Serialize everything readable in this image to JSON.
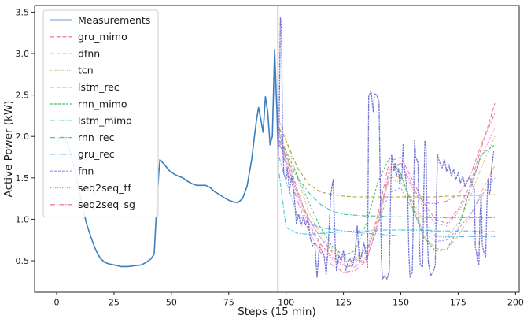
{
  "chart_data": {
    "type": "line",
    "title": "",
    "xlabel": "Steps (15 min)",
    "ylabel": "Active Power (kW)",
    "xlim": [
      -9.6,
      201.6
    ],
    "ylim": [
      0.12,
      3.58
    ],
    "xticks": [
      0,
      25,
      50,
      75,
      100,
      125,
      150,
      175,
      200
    ],
    "yticks": [
      0.5,
      1.0,
      1.5,
      2.0,
      2.5,
      3.0,
      3.5
    ],
    "grid": false,
    "legend_position": "upper left",
    "axis_color": "#262626",
    "forecast_split_line": {
      "x": 96.5,
      "color": "#1a1a1a"
    },
    "forecast_steps": [
      97,
      100,
      105,
      110,
      115,
      120,
      125,
      130,
      135,
      140,
      145,
      150,
      155,
      160,
      165,
      170,
      175,
      180,
      185,
      191
    ],
    "series": [
      {
        "name": "Measurements",
        "color": "#3a7ebf",
        "linestyle": "solid",
        "width": 1.6,
        "in_legend": true,
        "points": [
          [
            0,
            1.93
          ],
          [
            2,
            2.0
          ],
          [
            3,
            2.0
          ],
          [
            5,
            1.9
          ],
          [
            7,
            1.7
          ],
          [
            9,
            1.45
          ],
          [
            11,
            1.18
          ],
          [
            13,
            0.95
          ],
          [
            15,
            0.78
          ],
          [
            17,
            0.63
          ],
          [
            19,
            0.53
          ],
          [
            21,
            0.48
          ],
          [
            23,
            0.46
          ],
          [
            25,
            0.45
          ],
          [
            28,
            0.43
          ],
          [
            31,
            0.43
          ],
          [
            34,
            0.44
          ],
          [
            37,
            0.45
          ],
          [
            39,
            0.48
          ],
          [
            41,
            0.52
          ],
          [
            42.5,
            0.58
          ],
          [
            43.5,
            1.1
          ],
          [
            44.5,
            1.55
          ],
          [
            45,
            1.72
          ],
          [
            47,
            1.66
          ],
          [
            49,
            1.59
          ],
          [
            51,
            1.55
          ],
          [
            53,
            1.52
          ],
          [
            55,
            1.5
          ],
          [
            57,
            1.46
          ],
          [
            59,
            1.43
          ],
          [
            61,
            1.41
          ],
          [
            63,
            1.41
          ],
          [
            65,
            1.41
          ],
          [
            67,
            1.38
          ],
          [
            69,
            1.33
          ],
          [
            71,
            1.3
          ],
          [
            73,
            1.26
          ],
          [
            75,
            1.23
          ],
          [
            77,
            1.21
          ],
          [
            79,
            1.2
          ],
          [
            81,
            1.25
          ],
          [
            83,
            1.4
          ],
          [
            85,
            1.72
          ],
          [
            86,
            1.95
          ],
          [
            87,
            2.18
          ],
          [
            88,
            2.35
          ],
          [
            89,
            2.2
          ],
          [
            90,
            2.05
          ],
          [
            91,
            2.48
          ],
          [
            92,
            2.3
          ],
          [
            93,
            1.9
          ],
          [
            94,
            2.0
          ],
          [
            95,
            3.05
          ],
          [
            96,
            2.3
          ],
          [
            96.5,
            1.85
          ]
        ]
      },
      {
        "name": "gru_mimo",
        "color": "#f08396",
        "linestyle": "dashed",
        "width": 1.1,
        "in_legend": true,
        "values": [
          2.1,
          1.8,
          1.35,
          0.95,
          0.7,
          0.55,
          0.45,
          0.43,
          0.55,
          1.05,
          1.7,
          1.75,
          1.48,
          1.2,
          1.0,
          0.95,
          1.12,
          1.4,
          1.85,
          2.4
        ]
      },
      {
        "name": "dfnn",
        "color": "#f6b47c",
        "linestyle": "dashed",
        "width": 1.1,
        "in_legend": true,
        "values": [
          2.05,
          1.75,
          1.32,
          1.0,
          0.78,
          0.6,
          0.5,
          0.48,
          0.6,
          1.0,
          1.5,
          1.52,
          1.22,
          0.8,
          0.65,
          0.63,
          0.8,
          1.02,
          1.32,
          1.65
        ]
      },
      {
        "name": "tcn",
        "color": "#d4c28a",
        "linestyle": "dotted-dense",
        "width": 1.4,
        "in_legend": true,
        "values": [
          2.2,
          1.95,
          1.5,
          1.08,
          0.82,
          0.65,
          0.55,
          0.52,
          0.65,
          1.05,
          1.48,
          1.45,
          1.22,
          0.98,
          0.8,
          0.78,
          0.95,
          1.25,
          1.62,
          2.0
        ]
      },
      {
        "name": "lstm_rec",
        "color": "#a6a832",
        "linestyle": "dashed",
        "width": 1.1,
        "in_legend": true,
        "values": [
          2.1,
          1.95,
          1.62,
          1.42,
          1.33,
          1.3,
          1.28,
          1.27,
          1.27,
          1.27,
          1.27,
          1.27,
          1.27,
          1.27,
          1.27,
          1.28,
          1.28,
          1.29,
          1.29,
          1.3
        ]
      },
      {
        "name": "rnn_mimo",
        "color": "#4eb86d",
        "linestyle": "dashed-small",
        "width": 1.1,
        "in_legend": true,
        "values": [
          1.95,
          1.82,
          1.52,
          1.2,
          0.9,
          0.68,
          0.56,
          0.62,
          0.95,
          1.45,
          1.74,
          1.55,
          1.15,
          0.78,
          0.62,
          0.63,
          0.88,
          1.35,
          1.78,
          1.9
        ]
      },
      {
        "name": "lstm_mimo",
        "color": "#3dbfab",
        "linestyle": "dashdot",
        "width": 1.1,
        "in_legend": true,
        "values": [
          1.9,
          1.75,
          1.5,
          1.32,
          1.18,
          1.1,
          1.06,
          1.05,
          1.04,
          1.04,
          1.03,
          1.03,
          1.03,
          1.02,
          1.02,
          1.02,
          1.02,
          1.02,
          1.02,
          1.02
        ]
      },
      {
        "name": "rnn_rec",
        "color": "#43c3de",
        "linestyle": "dashdot",
        "width": 1.1,
        "in_legend": true,
        "values": [
          1.55,
          0.9,
          0.83,
          0.82,
          0.83,
          0.84,
          0.85,
          0.86,
          0.86,
          0.87,
          0.87,
          0.87,
          0.87,
          0.87,
          0.86,
          0.86,
          0.86,
          0.86,
          0.85,
          0.85
        ]
      },
      {
        "name": "gru_rec",
        "color": "#6cb3ea",
        "linestyle": "dashdotdot",
        "width": 1.1,
        "in_legend": true,
        "values": [
          1.75,
          1.45,
          1.05,
          0.95,
          0.9,
          0.88,
          0.86,
          0.84,
          0.83,
          0.82,
          0.81,
          0.8,
          0.8,
          0.8,
          0.8,
          0.79,
          0.79,
          0.79,
          0.79,
          0.79
        ]
      },
      {
        "name": "fnn",
        "color": "#a2a2ef",
        "linestyle": "dashed-small",
        "width": 1.1,
        "in_legend": true,
        "values": [
          2.05,
          1.7,
          1.3,
          1.0,
          0.78,
          0.62,
          0.52,
          0.5,
          0.62,
          0.95,
          1.32,
          1.38,
          1.12,
          0.85,
          0.73,
          0.75,
          0.88,
          1.05,
          1.28,
          1.5
        ]
      },
      {
        "name": "seq2seq_tf",
        "color": "#d98ae8",
        "linestyle": "dotted-dense",
        "width": 1.1,
        "in_legend": true,
        "values": [
          2.0,
          1.7,
          1.28,
          0.92,
          0.68,
          0.52,
          0.44,
          0.42,
          0.52,
          0.9,
          1.55,
          1.68,
          1.42,
          1.12,
          0.95,
          0.92,
          1.08,
          1.35,
          1.75,
          2.1
        ]
      },
      {
        "name": "seq2seq_sg",
        "color": "#f279b6",
        "linestyle": "dashdot",
        "width": 1.1,
        "in_legend": true,
        "values": [
          1.95,
          1.65,
          1.22,
          0.85,
          0.6,
          0.45,
          0.36,
          0.38,
          0.5,
          0.95,
          1.6,
          1.68,
          1.38,
          1.2,
          1.19,
          1.22,
          1.3,
          1.5,
          1.9,
          2.28
        ]
      },
      {
        "name": "unlabeled_purple_actuals",
        "color": "#7273d4",
        "linestyle": "dotted-tight",
        "width": 1.3,
        "in_legend": false,
        "points": [
          [
            96.5,
            1.6
          ],
          [
            97,
            2.2
          ],
          [
            97.5,
            3.43
          ],
          [
            98,
            3.3
          ],
          [
            98.5,
            2.0
          ],
          [
            99,
            1.55
          ],
          [
            100,
            1.48
          ],
          [
            100.5,
            1.62
          ],
          [
            101.5,
            1.35
          ],
          [
            102.5,
            1.52
          ],
          [
            103.5,
            1.3
          ],
          [
            104.5,
            0.95
          ],
          [
            105.5,
            1.06
          ],
          [
            106.5,
            0.92
          ],
          [
            107.5,
            1.02
          ],
          [
            108.5,
            0.93
          ],
          [
            109.5,
            1.0
          ],
          [
            110.5,
            0.78
          ],
          [
            111.5,
            0.68
          ],
          [
            112.5,
            0.72
          ],
          [
            113.5,
            0.3
          ],
          [
            114.5,
            0.68
          ],
          [
            115.5,
            0.62
          ],
          [
            116.5,
            0.57
          ],
          [
            117.5,
            0.33
          ],
          [
            118.5,
            0.75
          ],
          [
            119.5,
            1.3
          ],
          [
            120.5,
            1.48
          ],
          [
            121.5,
            0.6
          ],
          [
            122,
            0.38
          ],
          [
            123,
            0.56
          ],
          [
            124,
            0.5
          ],
          [
            125,
            0.62
          ],
          [
            126,
            0.38
          ],
          [
            127,
            0.48
          ],
          [
            128,
            0.52
          ],
          [
            129,
            0.44
          ],
          [
            130,
            0.58
          ],
          [
            131,
            0.92
          ],
          [
            132,
            0.48
          ],
          [
            133,
            0.58
          ],
          [
            134,
            0.72
          ],
          [
            135,
            0.55
          ],
          [
            135.5,
            0.42
          ],
          [
            136,
            2.48
          ],
          [
            137,
            2.55
          ],
          [
            137.5,
            2.42
          ],
          [
            138,
            2.3
          ],
          [
            138.5,
            2.52
          ],
          [
            139.5,
            2.5
          ],
          [
            140.5,
            2.42
          ],
          [
            141,
            1.5
          ],
          [
            141.5,
            0.55
          ],
          [
            142,
            0.28
          ],
          [
            143,
            0.32
          ],
          [
            144,
            0.28
          ],
          [
            145,
            0.38
          ],
          [
            145.5,
            1.2
          ],
          [
            146,
            1.78
          ],
          [
            147,
            1.58
          ],
          [
            147.5,
            1.68
          ],
          [
            148,
            1.52
          ],
          [
            149,
            1.62
          ],
          [
            149.5,
            1.42
          ],
          [
            150.5,
            1.55
          ],
          [
            151,
            1.9
          ],
          [
            151.5,
            1.62
          ],
          [
            152.5,
            1.42
          ],
          [
            153,
            1.28
          ],
          [
            153.5,
            0.6
          ],
          [
            154,
            0.3
          ],
          [
            155,
            0.36
          ],
          [
            155.5,
            1.1
          ],
          [
            156,
            1.95
          ],
          [
            156.5,
            1.75
          ],
          [
            157.5,
            1.68
          ],
          [
            158,
            0.8
          ],
          [
            158.5,
            0.45
          ],
          [
            159.5,
            0.42
          ],
          [
            160,
            1.3
          ],
          [
            160.5,
            1.95
          ],
          [
            161,
            1.85
          ],
          [
            161.5,
            0.9
          ],
          [
            162,
            0.48
          ],
          [
            163,
            0.32
          ],
          [
            164,
            0.36
          ],
          [
            165,
            0.44
          ],
          [
            165.5,
            1.2
          ],
          [
            166,
            1.78
          ],
          [
            167,
            1.68
          ],
          [
            168,
            1.62
          ],
          [
            169,
            1.72
          ],
          [
            170,
            1.58
          ],
          [
            171,
            1.66
          ],
          [
            172,
            1.52
          ],
          [
            173,
            1.6
          ],
          [
            174,
            1.48
          ],
          [
            175,
            1.56
          ],
          [
            176,
            1.44
          ],
          [
            177,
            1.52
          ],
          [
            178,
            1.4
          ],
          [
            179,
            1.46
          ],
          [
            180,
            1.52
          ],
          [
            181,
            1.42
          ],
          [
            182,
            1.38
          ],
          [
            182.5,
            0.65
          ],
          [
            183,
            0.6
          ],
          [
            183.5,
            0.48
          ],
          [
            184,
            0.45
          ],
          [
            184.5,
            1.0
          ],
          [
            185,
            1.3
          ],
          [
            185.5,
            0.7
          ],
          [
            186,
            0.62
          ],
          [
            187,
            0.55
          ],
          [
            187.5,
            1.15
          ],
          [
            188,
            1.48
          ],
          [
            188.5,
            1.3
          ],
          [
            189,
            1.35
          ],
          [
            189.5,
            1.6
          ],
          [
            190.5,
            1.82
          ]
        ]
      }
    ],
    "legend_labels": [
      "Measurements",
      "gru_mimo",
      "dfnn",
      "tcn",
      "lstm_rec",
      "rnn_mimo",
      "lstm_mimo",
      "rnn_rec",
      "gru_rec",
      "fnn",
      "seq2seq_tf",
      "seq2seq_sg"
    ]
  }
}
